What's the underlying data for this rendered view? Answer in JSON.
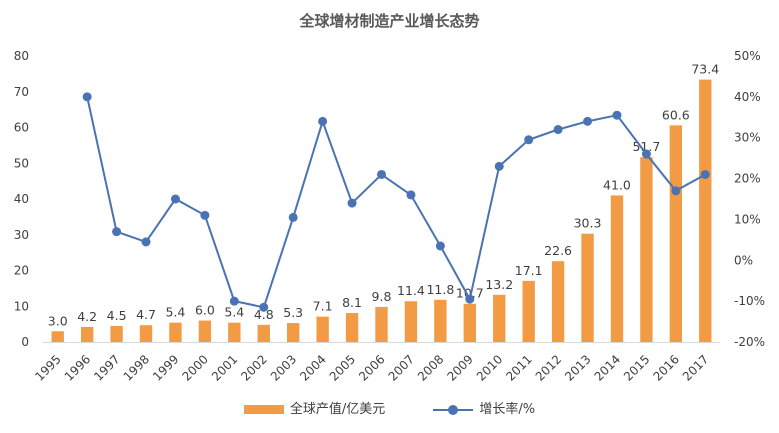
{
  "chart_data": {
    "type": "bar+line",
    "title": "全球增材制造产业增长态势",
    "categories": [
      "1995",
      "1996",
      "1997",
      "1998",
      "1999",
      "2000",
      "2001",
      "2002",
      "2003",
      "2004",
      "2005",
      "2006",
      "2007",
      "2008",
      "2009",
      "2010",
      "2011",
      "2012",
      "2013",
      "2014",
      "2015",
      "2016",
      "2017"
    ],
    "series": [
      {
        "name": "全球产值/亿美元",
        "type": "bar",
        "axis": "left",
        "color": "#f39a45",
        "values": [
          3.0,
          4.2,
          4.5,
          4.7,
          5.4,
          6.0,
          5.4,
          4.8,
          5.3,
          7.1,
          8.1,
          9.8,
          11.4,
          11.8,
          10.7,
          13.2,
          17.1,
          22.6,
          30.3,
          41.0,
          51.7,
          60.6,
          73.4
        ],
        "labels": [
          "3.0",
          "4.2",
          "4.5",
          "4.7",
          "5.4",
          "6.0",
          "5.4",
          "4.8",
          "5.3",
          "7.1",
          "8.1",
          "9.8",
          "11.4",
          "11.8",
          "10.7",
          "13.2",
          "17.1",
          "22.6",
          "30.3",
          "41.0",
          "51.7",
          "60.6",
          "73.4"
        ]
      },
      {
        "name": "增长率/%",
        "type": "line",
        "axis": "right",
        "color": "#4a73b3",
        "values": [
          null,
          40,
          7,
          4.5,
          15,
          11,
          -10,
          -11.5,
          10.5,
          34,
          14,
          21,
          16,
          3.5,
          -9.5,
          23,
          29.5,
          32,
          34,
          35.5,
          26,
          17,
          21
        ]
      }
    ],
    "y_left": {
      "min": 0,
      "max": 80,
      "step": 10,
      "ticks": [
        "0",
        "10",
        "20",
        "30",
        "40",
        "50",
        "60",
        "70",
        "80"
      ]
    },
    "y_right": {
      "min": -20,
      "max": 50,
      "step": 10,
      "ticks": [
        "-20%",
        "-10%",
        "0%",
        "10%",
        "20%",
        "30%",
        "40%",
        "50%"
      ]
    },
    "grid": false,
    "legend": "bottom"
  },
  "legend_items": [
    "全球产值/亿美元",
    "增长率/%"
  ]
}
